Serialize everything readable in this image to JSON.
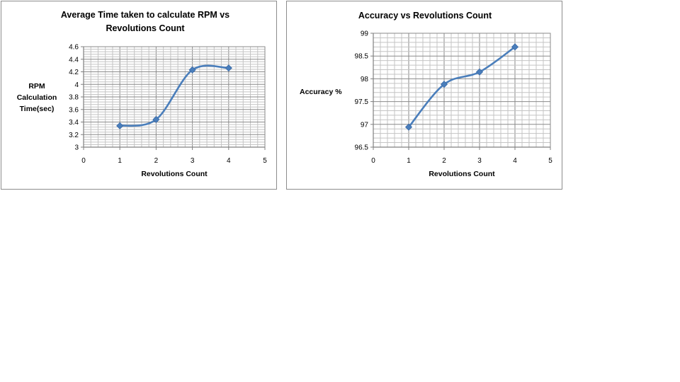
{
  "chart_data": [
    {
      "type": "line",
      "title": [
        "Average Time taken to calculate RPM vs",
        "Revolutions Count"
      ],
      "xlabel": "Revolutions Count",
      "ylabel": [
        "RPM",
        "Calculation",
        "Time(sec)"
      ],
      "xlim": [
        0,
        5
      ],
      "ylim": [
        3,
        4.6
      ],
      "xticks": [
        0,
        1,
        2,
        3,
        4,
        5
      ],
      "xtick_labels": [
        "0",
        "1",
        "2",
        "3",
        "4",
        "5"
      ],
      "yticks": [
        3,
        3.2,
        3.4,
        3.6,
        3.8,
        4,
        4.2,
        4.4,
        4.6
      ],
      "ytick_labels": [
        "3",
        "3.2",
        "3.4",
        "3.6",
        "3.8",
        "4",
        "4.2",
        "4.4",
        "4.6"
      ],
      "grid": true,
      "smooth": true,
      "marker": "diamond",
      "color": "#4a7ebb",
      "series": [
        {
          "x": [
            1,
            2,
            3,
            4
          ],
          "values": [
            3.34,
            3.44,
            4.23,
            4.26
          ]
        }
      ]
    },
    {
      "type": "line",
      "title": [
        "Accuracy vs Revolutions Count"
      ],
      "xlabel": "Revolutions Count",
      "ylabel": [
        "Accuracy  %"
      ],
      "xlim": [
        0,
        5
      ],
      "ylim": [
        96.5,
        99
      ],
      "xticks": [
        0,
        1,
        2,
        3,
        4,
        5
      ],
      "xtick_labels": [
        "0",
        "1",
        "2",
        "3",
        "4",
        "5"
      ],
      "yticks": [
        96.5,
        97,
        97.5,
        98,
        98.5,
        99
      ],
      "ytick_labels": [
        "96.5",
        "97",
        "97.5",
        "98",
        "98.5",
        "99"
      ],
      "grid": true,
      "smooth": true,
      "marker": "diamond",
      "color": "#4a7ebb",
      "series": [
        {
          "x": [
            1,
            2,
            3,
            4
          ],
          "values": [
            96.94,
            97.88,
            98.15,
            98.7
          ]
        }
      ]
    }
  ]
}
